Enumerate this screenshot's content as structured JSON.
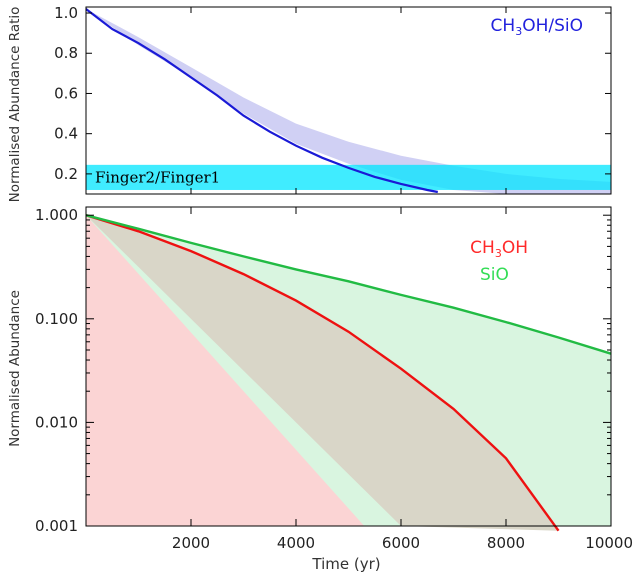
{
  "chart_data": [
    {
      "type": "line",
      "panel": "top",
      "ylabel": "Normalised Abundance Ratio",
      "xlim": [
        0,
        10000
      ],
      "ylim": [
        0.1,
        1.03
      ],
      "yticks": [
        1.0,
        0.8,
        0.6,
        0.4,
        0.2
      ],
      "ytick_labels": [
        "1.0",
        "0.8",
        "0.6",
        "0.4",
        "0.2"
      ],
      "legend": {
        "text": "CH3OH/SiO",
        "parts": [
          "CH",
          "3",
          "OH/SiO"
        ],
        "color": "#2222dd",
        "position": "top-right"
      },
      "series": [
        {
          "name": "CH3OH/SiO",
          "color": "#1a1ad6",
          "x": [
            0,
            500,
            1000,
            1500,
            2000,
            2500,
            3000,
            3500,
            4000,
            4500,
            5000,
            5500,
            6000,
            6500,
            6700
          ],
          "values": [
            1.02,
            0.92,
            0.85,
            0.77,
            0.68,
            0.59,
            0.49,
            0.41,
            0.34,
            0.28,
            0.23,
            0.185,
            0.15,
            0.12,
            0.11
          ]
        }
      ],
      "shaded_range": {
        "color": "#c8c8f2",
        "x": [
          0,
          1000,
          2000,
          3000,
          4000,
          5000,
          6000,
          7000,
          8000,
          9000,
          10000
        ],
        "upper": [
          1.02,
          0.88,
          0.73,
          0.58,
          0.45,
          0.36,
          0.29,
          0.24,
          0.2,
          0.175,
          0.16
        ],
        "lower": [
          1.02,
          0.84,
          0.68,
          0.5,
          0.35,
          0.25,
          0.17,
          0.12,
          0.1,
          0.1,
          0.1
        ]
      },
      "band": {
        "label": "Finger2/Finger1",
        "color": "#00e5ff",
        "ymin": 0.12,
        "ymax": 0.245
      }
    },
    {
      "type": "line",
      "panel": "bottom",
      "xlabel": "Time (yr)",
      "ylabel": "Normalised Abundance",
      "yscale": "log",
      "xlim": [
        0,
        10000
      ],
      "ylim": [
        0.001,
        1.2
      ],
      "xticks": [
        2000,
        4000,
        6000,
        8000,
        10000
      ],
      "xtick_labels": [
        "2000",
        "4000",
        "6000",
        "8000",
        "10000"
      ],
      "yticks": [
        1.0,
        0.1,
        0.01,
        0.001
      ],
      "ytick_labels": [
        "1.000",
        "0.100",
        "0.010",
        "0.001"
      ],
      "legend": [
        {
          "text": "CH3OH",
          "parts": [
            "CH",
            "3",
            "OH"
          ],
          "color": "#ff2a2a",
          "position": "top-right"
        },
        {
          "text": "SiO",
          "parts": [
            "SiO",
            "",
            ""
          ],
          "color": "#33dd55",
          "position": "top-right"
        }
      ],
      "series": [
        {
          "name": "CH3OH",
          "color": "#ee1111",
          "x": [
            0,
            1000,
            2000,
            3000,
            4000,
            5000,
            6000,
            7000,
            8000,
            9000
          ],
          "values": [
            1.0,
            0.7,
            0.45,
            0.27,
            0.15,
            0.075,
            0.033,
            0.0135,
            0.0045,
            0.0009
          ]
        },
        {
          "name": "SiO",
          "color": "#22bb44",
          "x": [
            0,
            1000,
            2000,
            3000,
            4000,
            5000,
            6000,
            7000,
            8000,
            9000,
            10000
          ],
          "values": [
            1.0,
            0.74,
            0.54,
            0.4,
            0.3,
            0.23,
            0.17,
            0.128,
            0.093,
            0.066,
            0.046
          ]
        }
      ],
      "shaded_ranges": [
        {
          "name": "SiO",
          "color": "#d9f5e0",
          "x": [
            0,
            10000
          ],
          "upper": [
            1.0,
            0.046
          ],
          "lower": [
            1.0,
            0.0009
          ]
        },
        {
          "name": "CH3OH",
          "color": "#fbd4d4",
          "x": [
            0,
            5300
          ],
          "upper": [
            1.0,
            0.0009
          ],
          "lower": [
            1.0,
            0.0009
          ]
        },
        {
          "name": "overlap",
          "color": "#d9d6c8",
          "x": [
            0,
            1000,
            2000,
            3000,
            4000,
            5000,
            6000,
            7000,
            8000,
            9000
          ],
          "upper": [
            1.0,
            0.7,
            0.45,
            0.27,
            0.15,
            0.075,
            0.033,
            0.0135,
            0.0045,
            0.0009
          ],
          "lower_edge": {
            "x": [
              0,
              6000
            ],
            "y": [
              1.0,
              0.0009
            ]
          }
        }
      ]
    }
  ]
}
